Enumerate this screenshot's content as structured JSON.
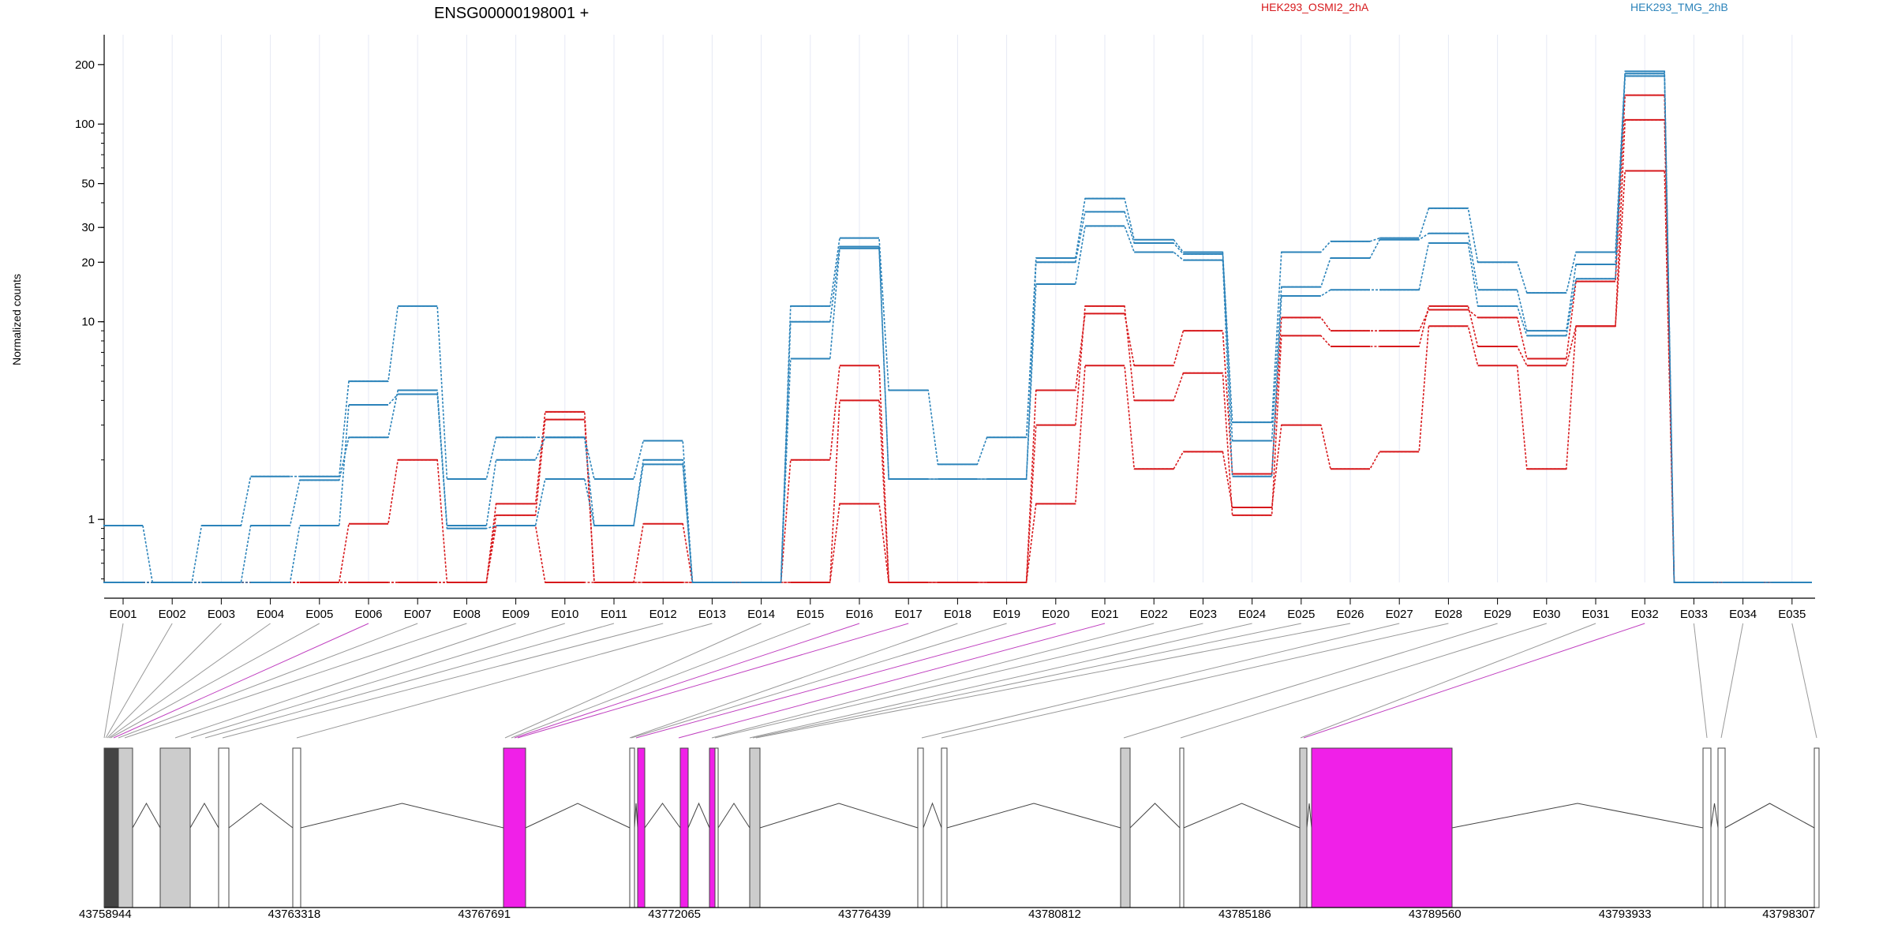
{
  "chart_data": {
    "type": "line",
    "title": "ENSG00000198001 +",
    "ylabel": "Normalized counts",
    "yscale": "log",
    "ylim": [
      0.48,
      240
    ],
    "yticks": [
      1,
      10,
      20,
      30,
      50,
      100,
      200
    ],
    "grid": "vertical",
    "legend_position": "top",
    "categories": [
      "E001",
      "E002",
      "E003",
      "E004",
      "E005",
      "E006",
      "E007",
      "E008",
      "E009",
      "E010",
      "E011",
      "E012",
      "E013",
      "E014",
      "E015",
      "E016",
      "E017",
      "E018",
      "E019",
      "E020",
      "E021",
      "E022",
      "E023",
      "E024",
      "E025",
      "E026",
      "E027",
      "E028",
      "E029",
      "E030",
      "E031",
      "E032",
      "E033",
      "E034",
      "E035"
    ],
    "groups": [
      {
        "name": "HEK293_OSMI2_2hA",
        "color": "#d7191c"
      },
      {
        "name": "HEK293_TMG_2hB",
        "color": "#2b83ba"
      }
    ],
    "series": [
      {
        "group": "HEK293_OSMI2_2hA",
        "values": [
          0.48,
          0.48,
          0.48,
          0.48,
          0.48,
          0.95,
          2.0,
          0.48,
          1.2,
          3.5,
          0.48,
          0.95,
          0.48,
          0.48,
          2.0,
          6.0,
          0.48,
          0.48,
          0.48,
          4.5,
          11.0,
          6.0,
          9.0,
          1.7,
          10.5,
          9.0,
          9.0,
          11.5,
          10.5,
          6.5,
          16.0,
          140,
          0.48,
          0.48,
          0.48
        ]
      },
      {
        "group": "HEK293_OSMI2_2hA",
        "values": [
          0.48,
          0.48,
          0.48,
          0.48,
          0.48,
          0.48,
          0.48,
          0.48,
          1.05,
          3.2,
          0.48,
          0.48,
          0.48,
          0.48,
          0.48,
          4.0,
          0.48,
          0.48,
          0.48,
          3.0,
          12.0,
          4.0,
          5.5,
          1.05,
          8.5,
          7.5,
          7.5,
          12.0,
          7.5,
          6.0,
          9.5,
          105,
          0.48,
          0.48,
          0.48
        ]
      },
      {
        "group": "HEK293_OSMI2_2hA",
        "values": [
          0.48,
          0.48,
          0.48,
          0.48,
          0.48,
          0.48,
          0.48,
          0.48,
          0.93,
          0.48,
          0.48,
          0.48,
          0.48,
          0.48,
          0.48,
          1.2,
          0.48,
          0.48,
          0.48,
          1.2,
          6.0,
          1.8,
          2.2,
          1.15,
          3.0,
          1.8,
          2.2,
          9.5,
          6.0,
          1.8,
          9.5,
          58,
          0.48,
          0.48,
          0.48
        ]
      },
      {
        "group": "HEK293_TMG_2hB",
        "values": [
          0.93,
          0.48,
          0.93,
          1.65,
          1.65,
          5.0,
          12.0,
          1.6,
          2.6,
          2.6,
          1.6,
          2.5,
          0.48,
          0.48,
          12.0,
          26.5,
          4.5,
          1.9,
          2.6,
          21.0,
          42.0,
          26.0,
          22.5,
          3.1,
          22.5,
          25.5,
          26.5,
          37.5,
          20.0,
          14.0,
          22.5,
          185,
          0.48,
          0.48,
          0.48
        ]
      },
      {
        "group": "HEK293_TMG_2hB",
        "values": [
          0.48,
          0.48,
          0.48,
          0.93,
          1.58,
          2.6,
          4.5,
          0.93,
          2.0,
          2.6,
          0.93,
          2.0,
          0.48,
          0.48,
          10.0,
          24.0,
          1.6,
          1.6,
          1.6,
          20.0,
          36.0,
          25.0,
          22.0,
          2.5,
          15.0,
          21.0,
          26.0,
          28.0,
          14.5,
          9.0,
          19.5,
          180,
          0.48,
          0.48,
          0.48
        ]
      },
      {
        "group": "HEK293_TMG_2hB",
        "values": [
          0.48,
          0.48,
          0.48,
          0.48,
          0.93,
          3.8,
          4.3,
          0.9,
          0.93,
          1.6,
          0.93,
          1.9,
          0.48,
          0.48,
          6.5,
          23.5,
          1.6,
          1.6,
          1.6,
          15.5,
          30.5,
          22.5,
          20.5,
          1.65,
          13.5,
          14.5,
          14.5,
          25.0,
          12.0,
          8.5,
          16.5,
          175,
          0.48,
          0.48,
          0.48
        ]
      }
    ],
    "gene_model": {
      "coord_ticks": [
        "43758944",
        "43763318",
        "43767691",
        "43772065",
        "43776439",
        "43780812",
        "43785186",
        "43789560",
        "43793933",
        "43798307"
      ],
      "highlight_color": "#f020e8",
      "exon_fill": "#cccccc",
      "highlighted_exons": [
        "E006",
        "E016",
        "E017",
        "E020",
        "E021",
        "E032"
      ]
    }
  }
}
